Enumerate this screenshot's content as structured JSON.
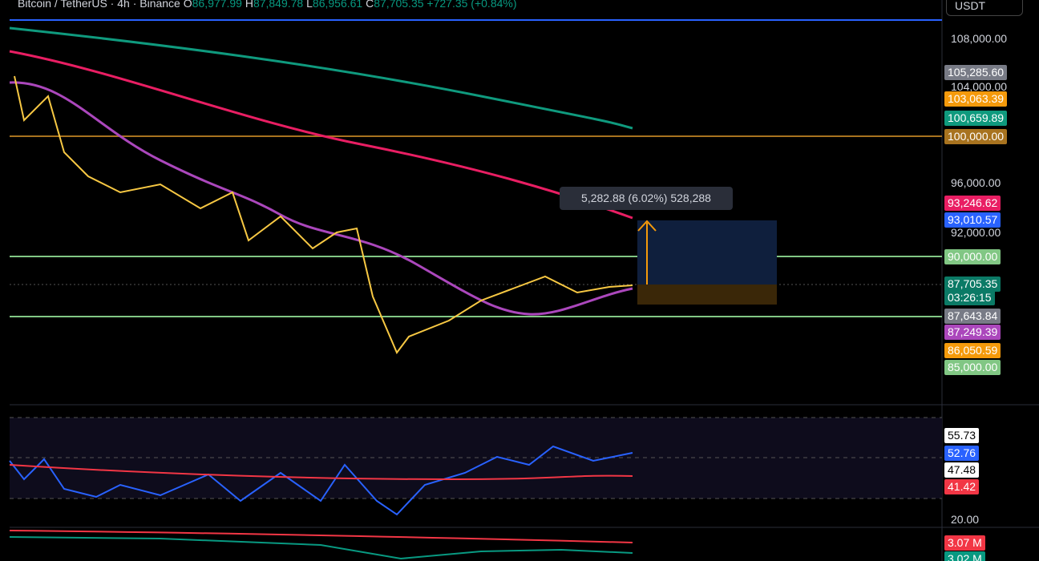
{
  "header": {
    "symbol": "Bitcoin / TetherUS · 4h · Binance",
    "open_label": "O",
    "open": "86,977.99",
    "high_label": "H",
    "high": "87,849.78",
    "low_label": "L",
    "low": "86,956.61",
    "close_label": "C",
    "close": "87,705.35",
    "change": "+727.35 (+0.84%)"
  },
  "currency": "USDT",
  "price_axis": {
    "ticks": [
      "108,000.00",
      "104,000.00",
      "96,000.00",
      "92,000.00"
    ]
  },
  "price_badges": [
    {
      "text": "105,285.60",
      "color": "#787b86"
    },
    {
      "text": "103,063.39",
      "color": "#f59a0b"
    },
    {
      "text": "100,659.89",
      "color": "#0f9a7e"
    },
    {
      "text": "100,000.00",
      "color": "#a8731f"
    },
    {
      "text": "93,246.62",
      "color": "#e91e63"
    },
    {
      "text": "93,010.57",
      "color": "#2962ff"
    },
    {
      "text": "90,000.00",
      "color": "#81c784"
    },
    {
      "text": "87,705.35",
      "color": "#0b7a66"
    },
    {
      "text": "03:26:15",
      "color": "#0b7a66"
    },
    {
      "text": "87,643.84",
      "color": "#787b86"
    },
    {
      "text": "87,249.39",
      "color": "#ab47bc"
    },
    {
      "text": "86,050.59",
      "color": "#f59a0b"
    },
    {
      "text": "85,000.00",
      "color": "#81c784"
    }
  ],
  "measure": "5,282.88 (6.02%) 528,288",
  "rsi": {
    "badges": [
      {
        "text": "55.73",
        "color": "#ffffff"
      },
      {
        "text": "52.76",
        "color": "#2962ff"
      },
      {
        "text": "47.48",
        "color": "#ffffff"
      },
      {
        "text": "41.42",
        "color": "#f23645"
      }
    ],
    "tick": "20.00"
  },
  "volume": {
    "badges": [
      {
        "text": "3.07 M",
        "color": "#f23645"
      },
      {
        "text": "3.02 M",
        "color": "#089981"
      }
    ]
  }
}
